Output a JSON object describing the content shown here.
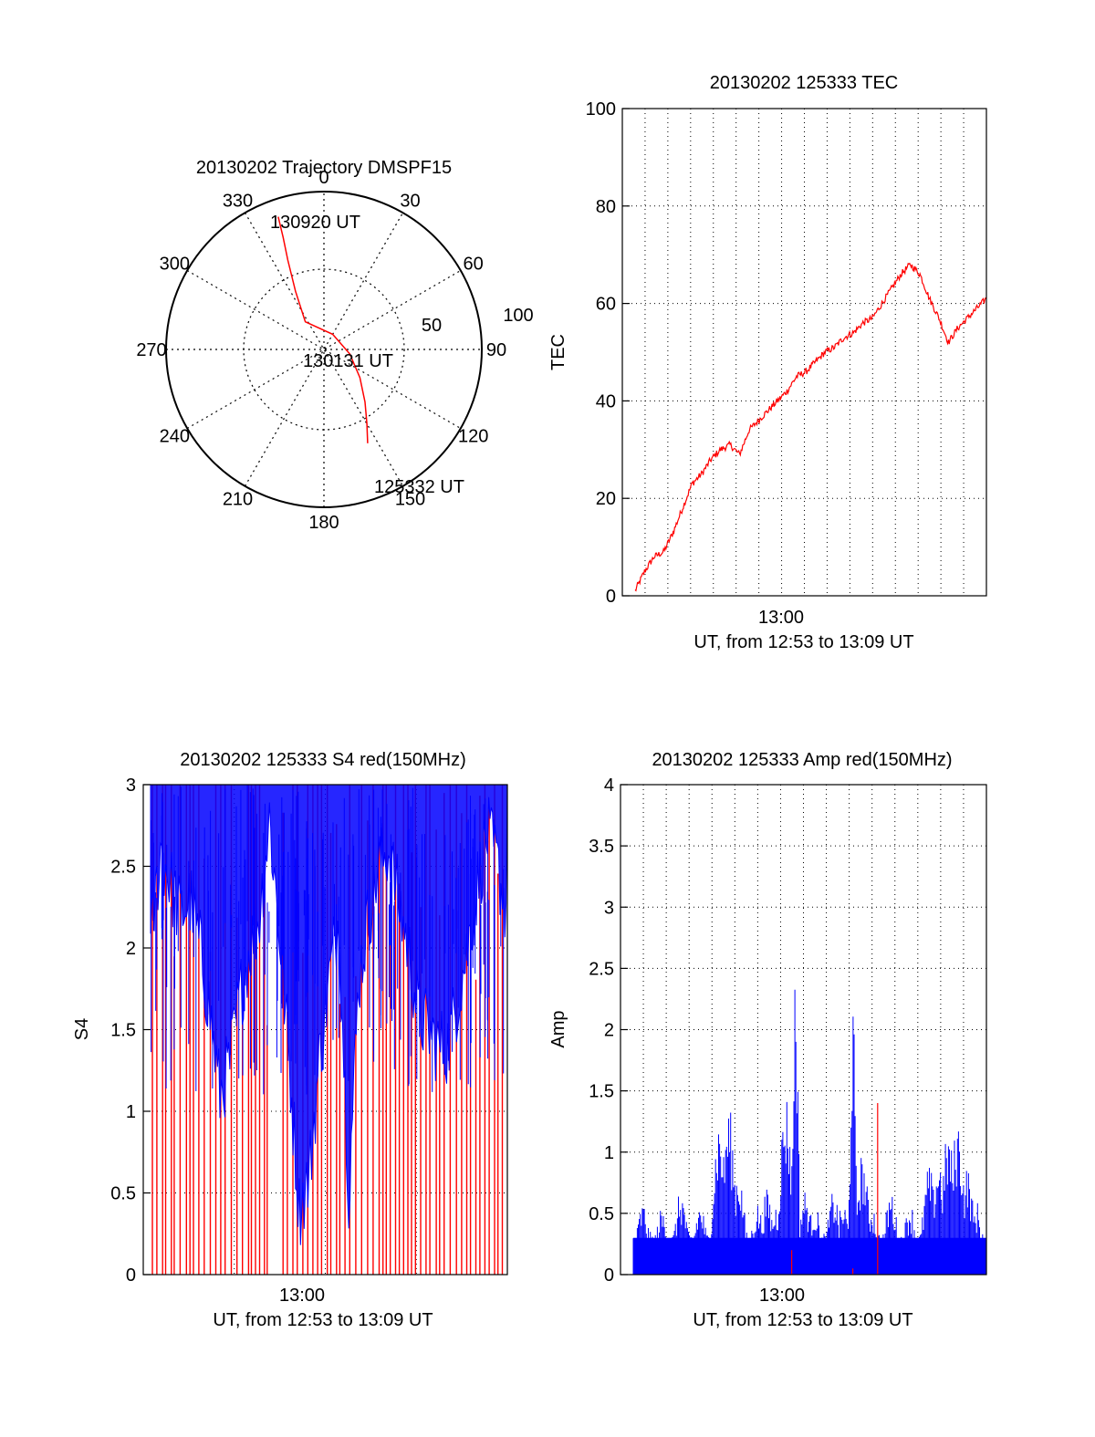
{
  "chart_data": [
    {
      "type": "polar",
      "title": "20130202 Trajectory DMSPF15",
      "angle_ticks": [
        "0",
        "30",
        "60",
        "90",
        "120",
        "150",
        "180",
        "210",
        "240",
        "270",
        "300",
        "330"
      ],
      "radius_ticks": [
        "50",
        "100"
      ],
      "point_labels": {
        "start": "125332 UT",
        "middle": "130131 UT",
        "end": "130920 UT"
      },
      "track": [
        {
          "azimuth": 155,
          "elevation": 31
        },
        {
          "azimuth": 150,
          "elevation": 41
        },
        {
          "azimuth": 142,
          "elevation": 52
        },
        {
          "azimuth": 128,
          "elevation": 64
        },
        {
          "azimuth": 100,
          "elevation": 75
        },
        {
          "azimuth": 30,
          "elevation": 80
        },
        {
          "azimuth": 326,
          "elevation": 71
        },
        {
          "azimuth": 334,
          "elevation": 53
        },
        {
          "azimuth": 338,
          "elevation": 35
        },
        {
          "azimuth": 340,
          "elevation": 22
        },
        {
          "azimuth": 341,
          "elevation": 10
        }
      ],
      "colors": {
        "track": "#ff0000"
      }
    },
    {
      "type": "line",
      "title": "20130202 125333 TEC",
      "xlabel": "UT, from 12:53 to 13:09 UT",
      "ylabel": "TEC",
      "x_tick_label": "13:00",
      "y_ticks": [
        "0",
        "20",
        "40",
        "60",
        "80",
        "100"
      ],
      "ylim": [
        0,
        100
      ],
      "grid": true,
      "series": [
        {
          "color": "#ff0000",
          "points": [
            [
              0.5,
              1
            ],
            [
              1.0,
              5
            ],
            [
              1.5,
              8
            ],
            [
              2.0,
              9
            ],
            [
              2.5,
              13
            ],
            [
              3.0,
              18
            ],
            [
              3.5,
              23
            ],
            [
              4.0,
              25
            ],
            [
              4.5,
              28
            ],
            [
              5.0,
              30
            ],
            [
              5.5,
              31
            ],
            [
              6.0,
              29
            ],
            [
              6.5,
              34
            ],
            [
              7.0,
              36
            ],
            [
              7.5,
              38
            ],
            [
              8.0,
              40
            ],
            [
              8.5,
              42
            ],
            [
              9.0,
              45
            ],
            [
              9.5,
              46
            ],
            [
              10.0,
              48
            ],
            [
              10.5,
              50
            ],
            [
              11.0,
              51
            ],
            [
              11.5,
              53
            ],
            [
              12.0,
              54
            ],
            [
              12.5,
              56
            ],
            [
              13.0,
              57
            ],
            [
              13.5,
              60
            ],
            [
              14.0,
              63
            ],
            [
              14.5,
              66
            ],
            [
              15.0,
              68
            ],
            [
              15.5,
              66
            ],
            [
              16.0,
              61
            ],
            [
              16.5,
              57
            ],
            [
              17.0,
              52
            ],
            [
              17.5,
              55
            ],
            [
              18.0,
              57
            ],
            [
              18.5,
              59
            ],
            [
              19.0,
              61
            ]
          ]
        }
      ]
    },
    {
      "type": "bar",
      "title": "20130202 125333 S4 red(150MHz)",
      "xlabel": "UT, from 12:53 to 13:09 UT",
      "ylabel": "S4",
      "x_tick_label": "13:00",
      "y_ticks": [
        "0",
        "0.5",
        "1",
        "1.5",
        "2",
        "2.5",
        "3"
      ],
      "ylim": [
        0,
        3
      ],
      "grid": true,
      "series": [
        {
          "color": "#ff0000",
          "description_values": [
            3,
            3,
            2.8,
            3,
            1.5,
            3,
            3,
            2.9,
            3,
            2,
            3,
            2.6,
            0.5,
            3,
            3,
            2.8,
            3,
            2,
            3,
            3
          ]
        },
        {
          "color": "#0000ff",
          "envelope": [
            [
              0.0,
              2.0
            ],
            [
              0.5,
              2.6
            ],
            [
              1.0,
              2.4
            ],
            [
              1.5,
              2.2
            ],
            [
              2.0,
              2.3
            ],
            [
              2.5,
              2.0
            ],
            [
              3.0,
              1.6
            ],
            [
              3.5,
              1.1
            ],
            [
              4.0,
              1.3
            ],
            [
              4.5,
              1.7
            ],
            [
              5.0,
              2.0
            ],
            [
              5.5,
              2.2
            ],
            [
              6.0,
              2.8
            ],
            [
              6.5,
              2.1
            ],
            [
              7.0,
              1.3
            ],
            [
              7.5,
              0.4
            ],
            [
              8.0,
              0.6
            ],
            [
              8.5,
              1.3
            ],
            [
              9.0,
              1.8
            ],
            [
              9.5,
              2.2
            ],
            [
              10.0,
              0.5
            ],
            [
              10.5,
              1.8
            ],
            [
              11.0,
              2.2
            ],
            [
              11.5,
              2.5
            ],
            [
              12.0,
              2.6
            ],
            [
              12.5,
              2.3
            ],
            [
              13.0,
              2.0
            ],
            [
              13.5,
              1.6
            ],
            [
              14.0,
              1.5
            ],
            [
              14.5,
              1.4
            ],
            [
              15.0,
              1.4
            ],
            [
              15.5,
              1.7
            ],
            [
              16.0,
              2.0
            ],
            [
              16.5,
              2.4
            ],
            [
              17.0,
              2.7
            ],
            [
              17.5,
              2.5
            ],
            [
              18.0,
              2.2
            ]
          ]
        }
      ]
    },
    {
      "type": "bar",
      "title": "20130202 125333 Amp red(150MHz)",
      "xlabel": "UT, from 12:53 to 13:09 UT",
      "ylabel": "Amp",
      "x_tick_label": "13:00",
      "y_ticks": [
        "0",
        "0.5",
        "1",
        "1.5",
        "2",
        "2.5",
        "3",
        "3.5",
        "4"
      ],
      "ylim": [
        0,
        4
      ],
      "grid": true,
      "series": [
        {
          "color": "#0000ff",
          "peaks": [
            [
              0.5,
              0.6
            ],
            [
              1.5,
              0.55
            ],
            [
              2.5,
              0.7
            ],
            [
              3.5,
              0.6
            ],
            [
              4.5,
              1.3
            ],
            [
              5.0,
              1.4
            ],
            [
              5.5,
              0.9
            ],
            [
              6.5,
              0.6
            ],
            [
              7.0,
              0.7
            ],
            [
              7.5,
              0.6
            ],
            [
              8.0,
              1.5
            ],
            [
              8.5,
              2.7
            ],
            [
              9.0,
              0.7
            ],
            [
              9.5,
              0.6
            ],
            [
              10.5,
              0.7
            ],
            [
              11.0,
              0.6
            ],
            [
              11.5,
              2.3
            ],
            [
              12.0,
              1.0
            ],
            [
              12.5,
              0.6
            ],
            [
              13.5,
              0.7
            ],
            [
              14.5,
              0.6
            ],
            [
              15.5,
              0.9
            ],
            [
              16.0,
              1.0
            ],
            [
              16.5,
              1.2
            ],
            [
              17.0,
              1.3
            ],
            [
              17.5,
              0.9
            ],
            [
              18.0,
              0.6
            ]
          ]
        },
        {
          "color": "#ff0000",
          "peaks": [
            [
              8.3,
              0.2
            ],
            [
              11.5,
              0.05
            ],
            [
              12.8,
              1.4
            ]
          ]
        }
      ]
    }
  ]
}
